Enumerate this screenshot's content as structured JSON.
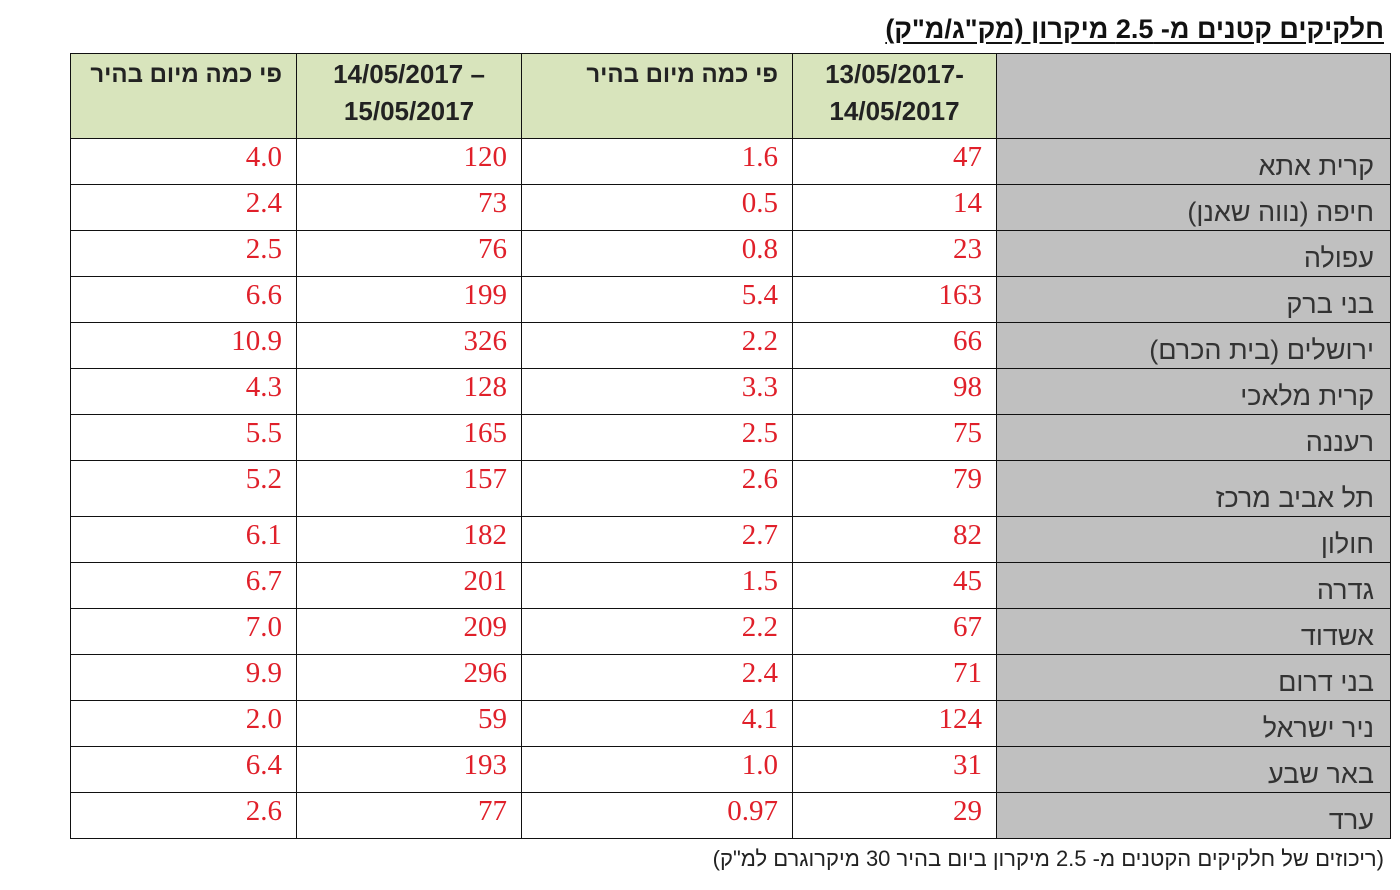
{
  "title": "חלקיקים קטנים מ- 2.5 מיקרון (מק\"ג/מ\"ק)",
  "headers": {
    "corner": "",
    "period1": "13/05/2017-\n14/05/2017",
    "ratio1": "פי כמה מיום בהיר",
    "period2": "14/05/2017 –\n15/05/2017",
    "ratio2": "פי כמה מיום בהיר"
  },
  "rows": [
    {
      "city": "קרית אתא",
      "v1": "47",
      "r1": "1.6",
      "v2": "120",
      "r2": "4.0"
    },
    {
      "city": "חיפה (נווה שאנן)",
      "v1": "14",
      "r1": "0.5",
      "v2": "73",
      "r2": "2.4"
    },
    {
      "city": "עפולה",
      "v1": "23",
      "r1": "0.8",
      "v2": "76",
      "r2": "2.5"
    },
    {
      "city": "בני ברק",
      "v1": "163",
      "r1": "5.4",
      "v2": "199",
      "r2": "6.6"
    },
    {
      "city": "ירושלים (בית הכרם)",
      "v1": "66",
      "r1": "2.2",
      "v2": "326",
      "r2": "10.9"
    },
    {
      "city": "קרית מלאכי",
      "v1": "98",
      "r1": "3.3",
      "v2": "128",
      "r2": "4.3"
    },
    {
      "city": "רעננה",
      "v1": "75",
      "r1": "2.5",
      "v2": "165",
      "r2": "5.5"
    },
    {
      "city": "תל אביב מרכז",
      "v1": "79",
      "r1": "2.6",
      "v2": "157",
      "r2": "5.2"
    },
    {
      "city": "חולון",
      "v1": "82",
      "r1": "2.7",
      "v2": "182",
      "r2": "6.1"
    },
    {
      "city": "גדרה",
      "v1": "45",
      "r1": "1.5",
      "v2": "201",
      "r2": "6.7"
    },
    {
      "city": "אשדוד",
      "v1": "67",
      "r1": "2.2",
      "v2": "209",
      "r2": "7.0"
    },
    {
      "city": "בני דרום",
      "v1": "71",
      "r1": "2.4",
      "v2": "296",
      "r2": "9.9"
    },
    {
      "city": "ניר ישראל",
      "v1": "124",
      "r1": "4.1",
      "v2": "59",
      "r2": "2.0"
    },
    {
      "city": "באר שבע",
      "v1": "31",
      "r1": "1.0",
      "v2": "193",
      "r2": "6.4"
    },
    {
      "city": "ערד",
      "v1": "29",
      "r1": "0.97",
      "v2": "77",
      "r2": "2.6"
    }
  ],
  "footnote": "(ריכוזים של חלקיקים הקטנים מ- 2.5 מיקרון ביום בהיר 30 מיקרוגרם למ\"ק)",
  "colors": {
    "header_bg": "#d8e4bc",
    "city_bg": "#c0c0c0",
    "value_text": "#e0202a"
  }
}
